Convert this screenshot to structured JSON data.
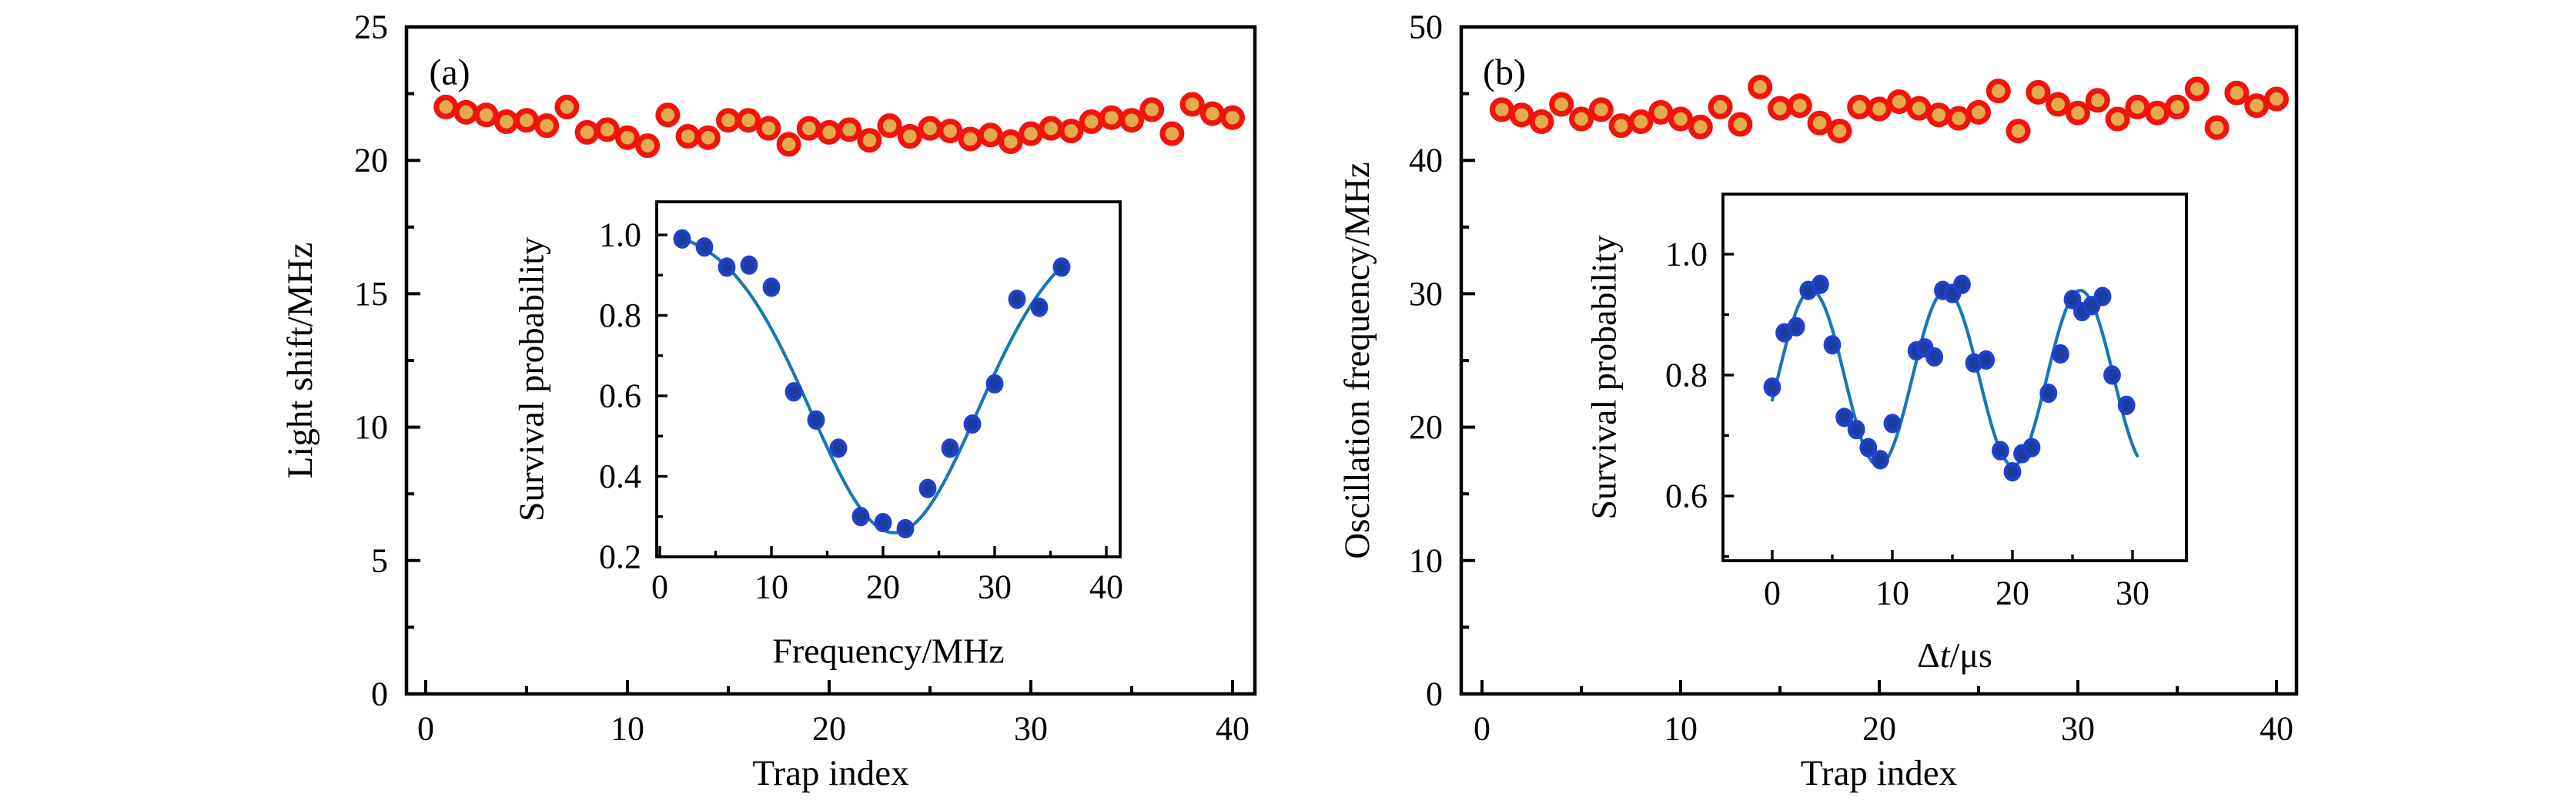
{
  "figure": {
    "background": "#FFFFFF",
    "colors": {
      "axis": "#000000",
      "marker_fill": "#E2AB4E",
      "marker_edge": "#F2140C",
      "inset_marker_fill": "#1A3EA0",
      "inset_marker_edge": "#2040CE",
      "fit_line": "#1878B4"
    }
  },
  "chart_data": [
    {
      "id": "panel-a",
      "type": "scatter",
      "panel_tag": "(a)",
      "xlabel": "Trap index",
      "ylabel": "Light shift/MHz",
      "xlim": [
        -1,
        41.1
      ],
      "ylim": [
        0,
        25
      ],
      "grid": false,
      "legend": null,
      "x_ticks": {
        "major": [
          0,
          10,
          20,
          30,
          40
        ],
        "major_labels": [
          "0",
          "10",
          "20",
          "30",
          "40"
        ],
        "minor": [
          5,
          15,
          25,
          35
        ]
      },
      "y_ticks": {
        "major": [
          0,
          5,
          10,
          15,
          20,
          25
        ],
        "major_labels": [
          "0",
          "5",
          "10",
          "15",
          "20",
          "25"
        ],
        "minor": [
          2.5,
          7.5,
          12.5,
          17.5,
          22.5
        ]
      },
      "x": [
        1,
        2,
        3,
        4,
        5,
        6,
        7,
        8,
        9,
        10,
        11,
        12,
        13,
        14,
        15,
        16,
        17,
        18,
        19,
        20,
        21,
        22,
        23,
        24,
        25,
        26,
        27,
        28,
        29,
        30,
        31,
        32,
        33,
        34,
        35,
        36,
        37,
        38,
        39,
        40
      ],
      "y": [
        22.0,
        21.8,
        21.7,
        21.45,
        21.5,
        21.3,
        22.0,
        21.05,
        21.15,
        20.85,
        20.55,
        21.7,
        20.9,
        20.85,
        21.5,
        21.5,
        21.2,
        20.6,
        21.2,
        21.05,
        21.15,
        20.75,
        21.3,
        20.9,
        21.2,
        21.1,
        20.8,
        20.95,
        20.7,
        21.0,
        21.2,
        21.1,
        21.45,
        21.6,
        21.5,
        21.9,
        21.0,
        22.1,
        21.75,
        21.6
      ]
    },
    {
      "id": "inset-a",
      "type": "scatter",
      "panel_tag": null,
      "xlabel": "Frequency/MHz",
      "ylabel": "Survival probability",
      "xlim": [
        -0.9,
        41.2
      ],
      "ylim": [
        0.2,
        1.08
      ],
      "grid": false,
      "legend": null,
      "x_ticks": {
        "major": [
          0,
          10,
          20,
          30,
          40
        ],
        "major_labels": [
          "0",
          "10",
          "20",
          "30",
          "40"
        ],
        "minor": [
          5,
          15,
          25,
          35
        ]
      },
      "y_ticks": {
        "major": [
          0.2,
          0.4,
          0.6,
          0.8,
          1.0
        ],
        "major_labels": [
          "0.2",
          "0.4",
          "0.6",
          "0.8",
          "1.0"
        ],
        "minor": [
          0.3,
          0.5,
          0.7,
          0.9
        ]
      },
      "x": [
        2,
        4,
        6,
        8,
        10,
        12,
        14,
        16,
        18,
        20,
        22,
        24,
        26,
        28,
        30,
        32,
        34,
        36
      ],
      "y": [
        0.99,
        0.97,
        0.92,
        0.925,
        0.87,
        0.61,
        0.54,
        0.47,
        0.3,
        0.285,
        0.27,
        0.37,
        0.47,
        0.53,
        0.63,
        0.84,
        0.82,
        0.92
      ],
      "fit": {
        "type": "gaussian_dip",
        "baseline": 1.02,
        "depth": 0.76,
        "center": 21,
        "width": 10.5,
        "x_range": [
          1.8,
          36.4
        ]
      }
    },
    {
      "id": "panel-b",
      "type": "scatter",
      "panel_tag": "(b)",
      "xlabel": "Trap index",
      "ylabel": "Oscillation frequency/MHz",
      "xlim": [
        -1,
        41
      ],
      "ylim": [
        0,
        50
      ],
      "grid": false,
      "legend": null,
      "x_ticks": {
        "major": [
          0,
          10,
          20,
          30,
          40
        ],
        "major_labels": [
          "0",
          "10",
          "20",
          "30",
          "40"
        ],
        "minor": [
          5,
          15,
          25,
          35
        ]
      },
      "y_ticks": {
        "major": [
          0,
          10,
          20,
          30,
          40,
          50
        ],
        "major_labels": [
          "0",
          "10",
          "20",
          "30",
          "40",
          "50"
        ],
        "minor": [
          5,
          15,
          25,
          35,
          45
        ]
      },
      "x": [
        1,
        2,
        3,
        4,
        5,
        6,
        7,
        8,
        9,
        10,
        11,
        12,
        13,
        14,
        15,
        16,
        17,
        18,
        19,
        20,
        21,
        22,
        23,
        24,
        25,
        26,
        27,
        28,
        29,
        30,
        31,
        32,
        33,
        34,
        35,
        36,
        37,
        38,
        39,
        40
      ],
      "y": [
        43.8,
        43.4,
        42.9,
        44.2,
        43.1,
        43.8,
        42.6,
        42.9,
        43.6,
        43.1,
        42.5,
        44.0,
        42.7,
        45.5,
        43.9,
        44.1,
        42.8,
        42.2,
        44.0,
        43.85,
        44.4,
        43.9,
        43.4,
        43.15,
        43.6,
        45.2,
        42.2,
        45.1,
        44.2,
        43.55,
        44.5,
        43.1,
        44.0,
        43.55,
        44.0,
        45.35,
        42.45,
        45.05,
        44.1,
        44.6
      ]
    },
    {
      "id": "inset-b",
      "type": "scatter",
      "panel_tag": null,
      "xlabel": "Δt/μs",
      "xlabel_parts": [
        {
          "text": "Δ",
          "italic": false
        },
        {
          "text": "t",
          "italic": true
        },
        {
          "text": "/μs",
          "italic": false
        }
      ],
      "ylabel": "Survival probability",
      "xlim": [
        -4.1,
        34.5
      ],
      "ylim": [
        0.49,
        1.1
      ],
      "grid": false,
      "legend": null,
      "x_ticks": {
        "major": [
          0,
          10,
          20,
          30
        ],
        "major_labels": [
          "0",
          "10",
          "20",
          "30"
        ],
        "minor": [
          5,
          15,
          25
        ]
      },
      "y_ticks": {
        "major": [
          0.6,
          0.8,
          1.0
        ],
        "major_labels": [
          "0.6",
          "0.8",
          "1.0"
        ],
        "minor": [
          0.5,
          0.7,
          0.9
        ]
      },
      "x": [
        0,
        1,
        2,
        3,
        4,
        5,
        6,
        7,
        8,
        9,
        10,
        12,
        12.7,
        13.5,
        14.2,
        15,
        15.8,
        16.8,
        17.8,
        19,
        20,
        20.8,
        21.6,
        23,
        24,
        25,
        25.8,
        26.6,
        27.5,
        28.3,
        29.5
      ],
      "y": [
        0.78,
        0.87,
        0.88,
        0.94,
        0.95,
        0.85,
        0.73,
        0.71,
        0.68,
        0.66,
        0.72,
        0.84,
        0.845,
        0.83,
        0.94,
        0.935,
        0.95,
        0.82,
        0.825,
        0.675,
        0.64,
        0.67,
        0.68,
        0.77,
        0.835,
        0.925,
        0.905,
        0.915,
        0.93,
        0.8,
        0.75
      ],
      "fit": {
        "type": "sine",
        "offset": 0.795,
        "amplitude": 0.145,
        "period": 11.2,
        "phase_x": 0.45,
        "x_range": [
          0,
          30.4
        ]
      }
    }
  ]
}
